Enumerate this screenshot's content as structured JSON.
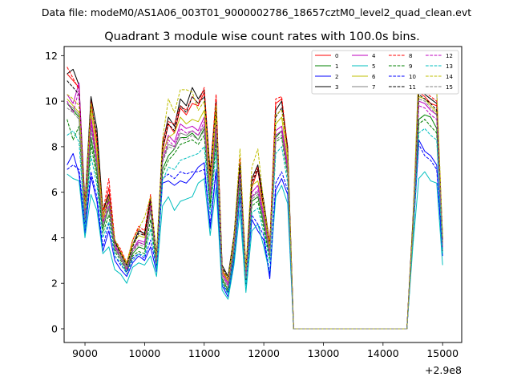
{
  "chart_data": {
    "type": "line",
    "suptitle": "Data file: modeM0/AS1A06_003T01_9000002786_18657cztM0_level2_quad_clean.evt",
    "title": "Quadrant 3 module wise count rates with 100.0s bins.",
    "xlabel": "",
    "ylabel": "",
    "x_offset_label": "+2.9e8",
    "xlim": [
      8650,
      15320
    ],
    "ylim": [
      -0.6,
      12.4
    ],
    "xticks": [
      9000,
      10000,
      11000,
      12000,
      13000,
      14000,
      15000
    ],
    "xtick_labels": [
      "9000",
      "10000",
      "11000",
      "12000",
      "13000",
      "14000",
      "15000"
    ],
    "yticks": [
      0,
      2,
      4,
      6,
      8,
      10,
      12
    ],
    "ytick_labels": [
      "0",
      "2",
      "4",
      "6",
      "8",
      "10",
      "12"
    ],
    "legend_position": "top-right",
    "x": [
      8700,
      8800,
      8900,
      9000,
      9100,
      9200,
      9300,
      9400,
      9500,
      9600,
      9700,
      9800,
      9900,
      10000,
      10100,
      10200,
      10300,
      10400,
      10500,
      10600,
      10700,
      10800,
      10900,
      11000,
      11100,
      11200,
      11300,
      11400,
      11500,
      11600,
      11700,
      11800,
      11900,
      12000,
      12100,
      12200,
      12300,
      12400,
      12500,
      12600,
      12700,
      12800,
      12900,
      13000,
      13100,
      13200,
      13300,
      13400,
      13500,
      13600,
      13700,
      13800,
      13900,
      14000,
      14100,
      14200,
      14300,
      14400,
      14500,
      14600,
      14700,
      14800,
      14900,
      15000
    ],
    "series": [
      {
        "name": "0",
        "color": "#ff0000",
        "dash": false,
        "values": [
          11.2,
          10.9,
          10.6,
          5.2,
          10.1,
          8.1,
          4.9,
          6.2,
          3.8,
          3.4,
          2.8,
          3.9,
          4.4,
          4.1,
          5.7,
          3.0,
          7.8,
          9.0,
          8.6,
          9.7,
          9.4,
          9.9,
          9.8,
          10.4,
          6.4,
          10.1,
          2.6,
          2.1,
          3.9,
          7.2,
          2.6,
          6.2,
          7.0,
          5.2,
          3.6,
          9.9,
          10.1,
          7.7,
          0,
          0,
          0,
          0,
          0,
          0,
          0,
          0,
          0,
          0,
          0,
          0,
          0,
          0,
          0,
          0,
          0,
          0,
          0,
          0,
          4.5,
          10.4,
          10.2,
          9.9,
          9.8,
          3.8
        ]
      },
      {
        "name": "1",
        "color": "#008000",
        "dash": false,
        "values": [
          9.9,
          9.6,
          9.3,
          4.8,
          8.4,
          6.9,
          4.4,
          5.3,
          3.5,
          3.1,
          2.6,
          3.3,
          3.6,
          3.5,
          5.2,
          2.8,
          7.0,
          7.6,
          7.9,
          8.4,
          8.4,
          8.6,
          8.3,
          8.8,
          5.5,
          8.5,
          2.2,
          1.7,
          3.4,
          6.5,
          2.1,
          5.6,
          5.8,
          4.6,
          3.2,
          8.4,
          8.7,
          6.9,
          0,
          0,
          0,
          0,
          0,
          0,
          0,
          0,
          0,
          0,
          0,
          0,
          0,
          0,
          0,
          0,
          0,
          0,
          0,
          0,
          4.0,
          9.2,
          9.4,
          9.3,
          8.8,
          3.5
        ]
      },
      {
        "name": "2",
        "color": "#0000ff",
        "dash": false,
        "values": [
          7.2,
          7.7,
          6.8,
          4.2,
          6.7,
          5.6,
          3.4,
          4.3,
          3.0,
          2.6,
          2.3,
          2.9,
          3.2,
          3.0,
          3.6,
          2.5,
          6.4,
          6.5,
          6.3,
          6.5,
          6.4,
          6.7,
          7.1,
          7.3,
          4.4,
          6.9,
          1.9,
          1.4,
          3.0,
          5.8,
          1.9,
          4.8,
          4.3,
          3.9,
          2.2,
          6.1,
          6.6,
          5.9,
          0,
          0,
          0,
          0,
          0,
          0,
          0,
          0,
          0,
          0,
          0,
          0,
          0,
          0,
          0,
          0,
          0,
          0,
          0,
          0,
          3.9,
          8.3,
          7.8,
          7.6,
          7.2,
          3.2
        ]
      },
      {
        "name": "3",
        "color": "#000000",
        "dash": false,
        "values": [
          11.2,
          11.4,
          10.7,
          5.5,
          10.2,
          8.8,
          5.2,
          5.9,
          3.9,
          3.3,
          2.8,
          3.7,
          4.3,
          4.2,
          5.8,
          3.2,
          8.1,
          9.3,
          8.9,
          10.1,
          9.8,
          10.6,
          10.1,
          10.5,
          6.9,
          10.0,
          2.8,
          2.3,
          4.1,
          7.3,
          2.5,
          6.6,
          7.2,
          5.6,
          3.7,
          9.6,
          10.0,
          8.0,
          0,
          0,
          0,
          0,
          0,
          0,
          0,
          0,
          0,
          0,
          0,
          0,
          0,
          0,
          0,
          0,
          0,
          0,
          0,
          0,
          4.7,
          10.6,
          10.3,
          10.1,
          9.9,
          4.0
        ]
      },
      {
        "name": "4",
        "color": "#bf00bf",
        "dash": false,
        "values": [
          10.3,
          9.9,
          10.8,
          5.0,
          9.3,
          7.4,
          4.7,
          5.8,
          3.7,
          3.2,
          2.7,
          3.5,
          3.9,
          3.8,
          5.6,
          3.0,
          7.6,
          8.5,
          8.2,
          9.0,
          8.8,
          8.9,
          8.7,
          9.3,
          6.0,
          9.1,
          2.5,
          2.0,
          3.7,
          7.0,
          2.4,
          6.0,
          6.3,
          5.0,
          3.4,
          8.7,
          8.9,
          7.2,
          0,
          0,
          0,
          0,
          0,
          0,
          0,
          0,
          0,
          0,
          0,
          0,
          0,
          0,
          0,
          0,
          0,
          0,
          0,
          0,
          4.3,
          10.0,
          9.9,
          9.6,
          9.4,
          3.7
        ]
      },
      {
        "name": "5",
        "color": "#00bfbf",
        "dash": false,
        "values": [
          6.8,
          6.6,
          6.5,
          4.0,
          5.9,
          5.2,
          3.3,
          3.6,
          2.6,
          2.4,
          2.0,
          2.7,
          2.9,
          2.8,
          3.2,
          2.3,
          5.4,
          5.8,
          5.2,
          5.6,
          5.7,
          5.8,
          6.4,
          6.6,
          4.1,
          6.2,
          1.7,
          1.3,
          2.8,
          5.2,
          1.6,
          4.3,
          4.6,
          3.6,
          2.4,
          5.8,
          6.3,
          5.5,
          0,
          0,
          0,
          0,
          0,
          0,
          0,
          0,
          0,
          0,
          0,
          0,
          0,
          0,
          0,
          0,
          0,
          0,
          0,
          0,
          3.6,
          6.6,
          6.9,
          6.5,
          6.4,
          2.8
        ]
      },
      {
        "name": "6",
        "color": "#bfbf00",
        "dash": false,
        "values": [
          10.1,
          9.8,
          9.5,
          5.1,
          9.6,
          7.7,
          4.8,
          5.6,
          3.8,
          3.3,
          2.8,
          3.7,
          4.1,
          4.0,
          5.5,
          3.0,
          7.7,
          8.4,
          8.6,
          9.3,
          9.0,
          9.2,
          9.1,
          9.6,
          6.2,
          9.4,
          2.5,
          2.1,
          3.8,
          7.1,
          2.5,
          6.3,
          6.5,
          5.2,
          3.5,
          9.0,
          9.3,
          7.4,
          0,
          0,
          0,
          0,
          0,
          0,
          0,
          0,
          0,
          0,
          0,
          0,
          0,
          0,
          0,
          0,
          0,
          0,
          0,
          0,
          4.4,
          10.2,
          10.1,
          9.8,
          9.5,
          3.8
        ]
      },
      {
        "name": "7",
        "color": "#808080",
        "dash": false,
        "values": [
          9.9,
          9.7,
          9.4,
          4.9,
          8.9,
          7.3,
          4.6,
          5.4,
          3.6,
          3.2,
          2.7,
          3.5,
          3.8,
          3.7,
          5.3,
          2.9,
          7.4,
          8.1,
          8.0,
          8.6,
          8.5,
          8.7,
          8.5,
          8.9,
          5.8,
          8.8,
          2.4,
          1.9,
          3.6,
          6.8,
          2.3,
          5.8,
          6.0,
          4.8,
          3.3,
          8.5,
          8.7,
          7.0,
          0,
          0,
          0,
          0,
          0,
          0,
          0,
          0,
          0,
          0,
          0,
          0,
          0,
          0,
          0,
          0,
          0,
          0,
          0,
          0,
          4.2,
          11.6,
          11.2,
          10.8,
          10.4,
          3.9
        ]
      },
      {
        "name": "8",
        "color": "#ff0000",
        "dash": true,
        "values": [
          11.5,
          11.0,
          10.5,
          5.4,
          9.8,
          8.4,
          5.1,
          6.6,
          3.9,
          3.5,
          2.9,
          3.9,
          4.5,
          4.3,
          5.9,
          3.1,
          8.2,
          9.1,
          9.0,
          9.8,
          9.6,
          10.2,
          9.9,
          10.6,
          6.8,
          10.3,
          2.7,
          2.2,
          4.0,
          7.5,
          2.7,
          6.5,
          7.1,
          5.4,
          3.8,
          10.1,
          10.2,
          7.9,
          0,
          0,
          0,
          0,
          0,
          0,
          0,
          0,
          0,
          0,
          0,
          0,
          0,
          0,
          0,
          0,
          0,
          0,
          0,
          0,
          4.6,
          10.6,
          10.4,
          10.2,
          10.0,
          4.0
        ]
      },
      {
        "name": "9",
        "color": "#008000",
        "dash": true,
        "values": [
          9.2,
          8.3,
          8.9,
          4.6,
          8.1,
          6.6,
          4.2,
          5.0,
          3.4,
          3.0,
          2.5,
          3.2,
          3.4,
          3.3,
          4.8,
          2.7,
          6.8,
          7.4,
          7.7,
          8.1,
          8.2,
          8.3,
          8.1,
          8.5,
          5.3,
          8.2,
          2.1,
          1.6,
          3.3,
          6.3,
          2.0,
          5.4,
          5.6,
          4.4,
          3.1,
          8.2,
          8.4,
          6.7,
          0,
          0,
          0,
          0,
          0,
          0,
          0,
          0,
          0,
          0,
          0,
          0,
          0,
          0,
          0,
          0,
          0,
          0,
          0,
          0,
          3.9,
          9.0,
          9.2,
          8.9,
          8.6,
          3.4
        ]
      },
      {
        "name": "10",
        "color": "#0000ff",
        "dash": true,
        "values": [
          7.0,
          7.2,
          7.0,
          4.5,
          6.9,
          5.8,
          3.6,
          4.6,
          3.2,
          2.8,
          2.5,
          3.1,
          3.3,
          3.1,
          3.9,
          2.7,
          6.6,
          6.8,
          6.6,
          6.9,
          6.8,
          6.9,
          6.9,
          7.0,
          4.6,
          7.0,
          2.0,
          1.6,
          3.2,
          6.0,
          2.0,
          5.0,
          4.6,
          4.1,
          2.4,
          6.4,
          6.9,
          6.1,
          0,
          0,
          0,
          0,
          0,
          0,
          0,
          0,
          0,
          0,
          0,
          0,
          0,
          0,
          0,
          0,
          0,
          0,
          0,
          0,
          4.0,
          8.1,
          7.6,
          7.4,
          7.0,
          3.3
        ]
      },
      {
        "name": "11",
        "color": "#000000",
        "dash": true,
        "values": [
          10.9,
          10.6,
          10.3,
          5.3,
          9.9,
          8.5,
          5.0,
          5.7,
          3.8,
          3.3,
          2.8,
          3.6,
          4.2,
          4.1,
          5.6,
          3.1,
          7.9,
          9.0,
          8.7,
          9.8,
          9.5,
          10.2,
          9.9,
          10.2,
          6.7,
          9.7,
          2.7,
          2.2,
          4.0,
          7.2,
          2.5,
          6.4,
          7.0,
          5.4,
          3.6,
          9.3,
          9.7,
          7.8,
          0,
          0,
          0,
          0,
          0,
          0,
          0,
          0,
          0,
          0,
          0,
          0,
          0,
          0,
          0,
          0,
          0,
          0,
          0,
          0,
          4.6,
          10.3,
          10.1,
          9.9,
          9.6,
          3.9
        ]
      },
      {
        "name": "12",
        "color": "#bf00bf",
        "dash": true,
        "values": [
          10.0,
          9.5,
          10.5,
          4.9,
          9.1,
          7.2,
          4.6,
          5.6,
          3.6,
          3.1,
          2.6,
          3.4,
          3.8,
          3.7,
          5.4,
          2.9,
          7.4,
          8.3,
          8.0,
          8.8,
          8.6,
          8.7,
          8.5,
          9.1,
          5.9,
          8.9,
          2.4,
          1.9,
          3.6,
          6.8,
          2.3,
          5.8,
          6.1,
          4.9,
          3.3,
          8.5,
          8.7,
          7.0,
          0,
          0,
          0,
          0,
          0,
          0,
          0,
          0,
          0,
          0,
          0,
          0,
          0,
          0,
          0,
          0,
          0,
          0,
          0,
          0,
          4.2,
          9.8,
          9.7,
          9.4,
          9.2,
          3.6
        ]
      },
      {
        "name": "13",
        "color": "#00bfbf",
        "dash": true,
        "values": [
          8.5,
          8.7,
          8.2,
          4.4,
          7.6,
          6.3,
          4.0,
          4.7,
          3.2,
          2.9,
          2.4,
          3.0,
          3.3,
          3.2,
          4.4,
          2.6,
          6.5,
          7.1,
          7.0,
          7.4,
          7.5,
          7.6,
          7.7,
          8.0,
          5.0,
          7.8,
          2.0,
          1.5,
          3.2,
          6.0,
          1.9,
          5.1,
          5.3,
          4.2,
          2.9,
          7.7,
          8.0,
          6.4,
          0,
          0,
          0,
          0,
          0,
          0,
          0,
          0,
          0,
          0,
          0,
          0,
          0,
          0,
          0,
          0,
          0,
          0,
          0,
          0,
          3.8,
          8.6,
          8.8,
          8.5,
          8.3,
          3.3
        ]
      },
      {
        "name": "14",
        "color": "#bfbf00",
        "dash": true,
        "values": [
          10.3,
          10.1,
          9.8,
          5.3,
          9.9,
          8.0,
          5.0,
          5.8,
          3.9,
          3.4,
          2.9,
          3.9,
          4.4,
          4.9,
          5.8,
          3.2,
          8.3,
          10.1,
          9.5,
          10.5,
          10.5,
          10.4,
          9.6,
          10.0,
          6.5,
          9.8,
          2.6,
          2.2,
          4.0,
          7.9,
          2.6,
          7.1,
          7.9,
          5.5,
          3.6,
          9.4,
          9.6,
          7.7,
          0,
          0,
          0,
          0,
          0,
          0,
          0,
          0,
          0,
          0,
          0,
          0,
          0,
          0,
          0,
          0,
          0,
          0,
          0,
          0,
          4.5,
          11.5,
          11.1,
          10.9,
          10.6,
          4.0
        ]
      },
      {
        "name": "15",
        "color": "#808080",
        "dash": true,
        "values": [
          9.7,
          9.5,
          9.2,
          4.8,
          8.7,
          7.1,
          4.5,
          5.3,
          3.5,
          3.1,
          2.7,
          3.4,
          3.7,
          3.6,
          5.2,
          2.9,
          7.3,
          8.0,
          7.9,
          8.4,
          8.3,
          8.5,
          8.3,
          8.7,
          5.7,
          8.6,
          2.3,
          1.8,
          3.5,
          6.6,
          2.2,
          5.7,
          5.9,
          4.7,
          3.2,
          8.3,
          8.5,
          6.8,
          0,
          0,
          0,
          0,
          0,
          0,
          0,
          0,
          0,
          0,
          0,
          0,
          0,
          0,
          0,
          0,
          0,
          0,
          0,
          0,
          4.1,
          10.1,
          10.0,
          9.7,
          9.4,
          3.7
        ]
      }
    ]
  }
}
